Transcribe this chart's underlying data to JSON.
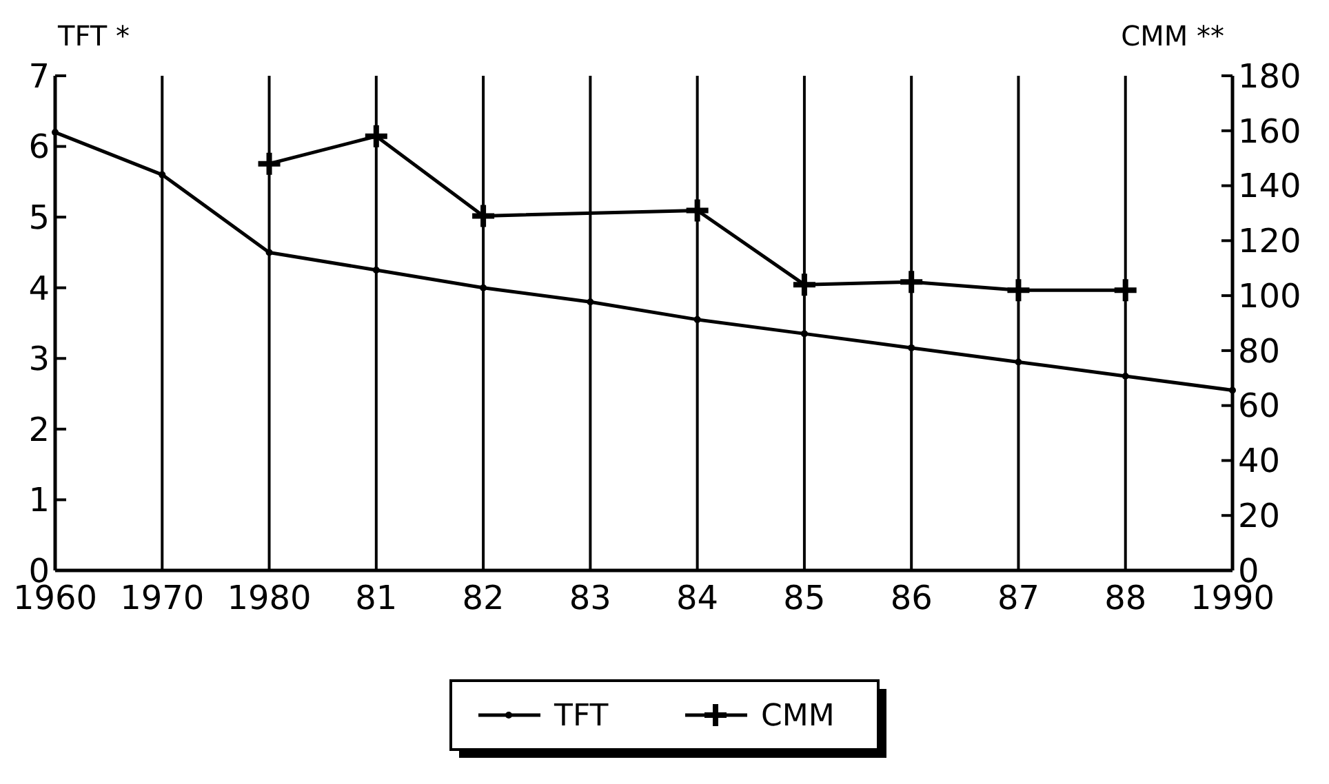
{
  "chart_data": {
    "type": "line",
    "ylabel": "TFT *",
    "y2label": "CMM **",
    "categories": [
      "1960",
      "1970",
      "1980",
      "81",
      "82",
      "83",
      "84",
      "85",
      "86",
      "87",
      "88",
      "1990"
    ],
    "series": [
      {
        "name": "TFT",
        "color": "#000000",
        "marker": "circle",
        "values": [
          6.2,
          5.6,
          4.5,
          4.25,
          4.0,
          3.8,
          3.55,
          3.35,
          3.15,
          2.95,
          2.75,
          2.55
        ]
      },
      {
        "name": "CMM",
        "color": "#000000",
        "marker": "cross",
        "axis": "y2",
        "values": [
          null,
          null,
          148,
          158,
          129,
          null,
          131,
          104,
          105,
          102,
          102,
          null
        ]
      }
    ],
    "ylim": [
      0,
      7
    ],
    "yticks": [
      0,
      1,
      2,
      3,
      4,
      5,
      6,
      7
    ],
    "y2lim": [
      0,
      180
    ],
    "y2ticks": [
      0,
      20,
      40,
      60,
      80,
      100,
      120,
      140,
      160,
      180
    ],
    "grid": "x",
    "legend": "bottom",
    "line_style": "solid"
  }
}
